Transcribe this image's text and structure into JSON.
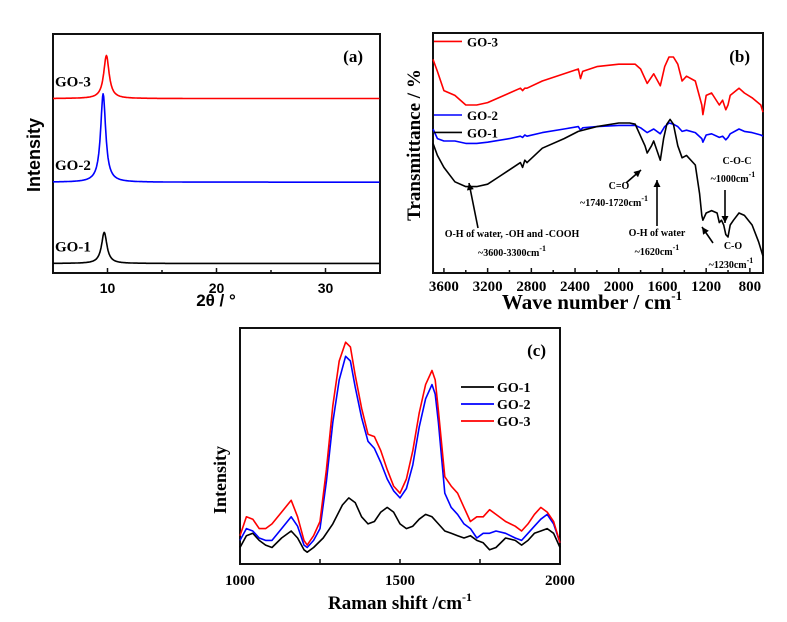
{
  "chart_data": [
    {
      "id": "a",
      "type": "line",
      "panel_label": "(a)",
      "title": "",
      "xlabel": "2θ / °",
      "ylabel": "Intensity",
      "xlim": [
        5,
        35
      ],
      "ylim": [
        0,
        1
      ],
      "x_ticks": [
        10,
        20,
        30
      ],
      "x_tick_labels": [
        "10",
        "20",
        "30"
      ],
      "y_ticks_shown": false,
      "grid": false,
      "legend": "inline-labels-left",
      "series": [
        {
          "name": "GO-1",
          "color": "#000000",
          "baseline": 0.04,
          "peak_position": 9.7,
          "peak_height": 0.13,
          "peak_width": 0.3
        },
        {
          "name": "GO-2",
          "color": "#0000ff",
          "baseline": 0.38,
          "peak_position": 9.6,
          "peak_height": 0.37,
          "peak_width": 0.28
        },
        {
          "name": "GO-3",
          "color": "#ff0000",
          "baseline": 0.73,
          "peak_position": 9.9,
          "peak_height": 0.18,
          "peak_width": 0.3
        }
      ]
    },
    {
      "id": "b",
      "type": "line",
      "panel_label": "(b)",
      "title": "",
      "xlabel": "Wave number / cm",
      "xlabel_superscript": "-1",
      "ylabel": "Transmittance / %",
      "xlim": [
        3700,
        680
      ],
      "x_reversed": true,
      "ylim": [
        0,
        1
      ],
      "x_ticks": [
        3600,
        3200,
        2800,
        2400,
        2000,
        1600,
        1200,
        800
      ],
      "x_tick_labels": [
        "3600",
        "3200",
        "2800",
        "2400",
        "2000",
        "1600",
        "1200",
        "800"
      ],
      "y_ticks_shown": false,
      "grid": false,
      "legend": "inline-labels-left",
      "series": [
        {
          "name": "GO-3",
          "color": "#ff0000",
          "x": [
            3700,
            3660,
            3600,
            3500,
            3400,
            3300,
            3200,
            3000,
            2900,
            2880,
            2860,
            2840,
            2700,
            2500,
            2370,
            2350,
            2330,
            2200,
            2000,
            1850,
            1800,
            1740,
            1680,
            1620,
            1580,
            1540,
            1500,
            1460,
            1420,
            1380,
            1300,
            1240,
            1230,
            1200,
            1150,
            1080,
            1050,
            1020,
            1000,
            980,
            900,
            850,
            780,
            700,
            680
          ],
          "y": [
            0.89,
            0.84,
            0.76,
            0.74,
            0.7,
            0.7,
            0.71,
            0.75,
            0.77,
            0.76,
            0.77,
            0.77,
            0.8,
            0.83,
            0.85,
            0.81,
            0.84,
            0.86,
            0.87,
            0.87,
            0.85,
            0.79,
            0.83,
            0.78,
            0.86,
            0.9,
            0.9,
            0.87,
            0.8,
            0.82,
            0.8,
            0.7,
            0.66,
            0.74,
            0.75,
            0.7,
            0.72,
            0.68,
            0.7,
            0.74,
            0.77,
            0.75,
            0.73,
            0.7,
            0.67
          ]
        },
        {
          "name": "GO-2",
          "color": "#0000ff",
          "x": [
            3700,
            3660,
            3600,
            3500,
            3400,
            3300,
            3200,
            3000,
            2900,
            2880,
            2860,
            2840,
            2700,
            2500,
            2370,
            2350,
            2330,
            2200,
            2000,
            1850,
            1800,
            1740,
            1680,
            1620,
            1580,
            1540,
            1500,
            1460,
            1420,
            1380,
            1300,
            1240,
            1230,
            1200,
            1150,
            1080,
            1050,
            1020,
            1000,
            980,
            900,
            850,
            780,
            700,
            680
          ],
          "y": [
            0.6,
            0.56,
            0.55,
            0.55,
            0.54,
            0.54,
            0.545,
            0.56,
            0.57,
            0.565,
            0.575,
            0.57,
            0.585,
            0.6,
            0.61,
            0.595,
            0.605,
            0.61,
            0.615,
            0.615,
            0.605,
            0.585,
            0.6,
            0.58,
            0.61,
            0.625,
            0.62,
            0.61,
            0.59,
            0.595,
            0.585,
            0.56,
            0.545,
            0.575,
            0.58,
            0.565,
            0.57,
            0.555,
            0.565,
            0.58,
            0.6,
            0.59,
            0.585,
            0.575,
            0.57
          ]
        },
        {
          "name": "GO-1",
          "color": "#000000",
          "x": [
            3700,
            3660,
            3600,
            3500,
            3400,
            3300,
            3200,
            3100,
            3000,
            2900,
            2880,
            2860,
            2840,
            2700,
            2500,
            2370,
            2200,
            2000,
            1900,
            1850,
            1800,
            1760,
            1740,
            1700,
            1680,
            1650,
            1620,
            1590,
            1560,
            1530,
            1500,
            1460,
            1420,
            1380,
            1300,
            1260,
            1240,
            1230,
            1200,
            1150,
            1100,
            1080,
            1060,
            1040,
            1020,
            1000,
            980,
            950,
            900,
            850,
            780,
            720,
            680
          ],
          "y": [
            0.54,
            0.49,
            0.44,
            0.38,
            0.36,
            0.36,
            0.37,
            0.4,
            0.43,
            0.46,
            0.44,
            0.47,
            0.46,
            0.52,
            0.56,
            0.59,
            0.61,
            0.625,
            0.625,
            0.62,
            0.57,
            0.53,
            0.5,
            0.53,
            0.55,
            0.51,
            0.47,
            0.56,
            0.62,
            0.64,
            0.62,
            0.53,
            0.48,
            0.49,
            0.45,
            0.33,
            0.24,
            0.22,
            0.25,
            0.26,
            0.25,
            0.21,
            0.22,
            0.2,
            0.16,
            0.15,
            0.2,
            0.22,
            0.25,
            0.24,
            0.2,
            0.13,
            0.07
          ]
        }
      ],
      "annotations": [
        {
          "text": "O-H of water, -OH and -COOH",
          "line2": "~3600-3300cm",
          "sup": "-1",
          "target_x": 3360
        },
        {
          "text": "C=O",
          "line2": "~1740-1720cm",
          "sup": "-1",
          "target_x": 1740
        },
        {
          "text": "O-H of water",
          "line2": "~1620cm",
          "sup": "-1",
          "target_x": 1620
        },
        {
          "text": "C-O-C",
          "line2": "~1000cm",
          "sup": "-1",
          "target_x": 1000
        },
        {
          "text": "C-O",
          "line2": "~1230cm",
          "sup": "-1",
          "target_x": 1230
        }
      ]
    },
    {
      "id": "c",
      "type": "line",
      "panel_label": "(c)",
      "title": "",
      "xlabel": "Raman shift /cm",
      "xlabel_superscript": "-1",
      "ylabel": "Intensity",
      "xlim": [
        1000,
        2000
      ],
      "ylim": [
        0,
        1
      ],
      "x_ticks": [
        1000,
        1250,
        1500,
        1750,
        2000
      ],
      "x_tick_labels": [
        "1000",
        "",
        "1500",
        "",
        "2000"
      ],
      "y_ticks_shown": false,
      "grid": false,
      "legend": "right",
      "series": [
        {
          "name": "GO-1",
          "color": "#000000",
          "x": [
            1000,
            1020,
            1040,
            1060,
            1080,
            1100,
            1130,
            1160,
            1180,
            1200,
            1210,
            1230,
            1260,
            1290,
            1320,
            1340,
            1360,
            1380,
            1400,
            1420,
            1440,
            1460,
            1480,
            1500,
            1520,
            1540,
            1560,
            1580,
            1600,
            1620,
            1640,
            1660,
            1680,
            1700,
            1720,
            1740,
            1760,
            1780,
            1800,
            1830,
            1860,
            1880,
            1900,
            1920,
            1940,
            1960,
            1980,
            2000
          ],
          "y": [
            0.07,
            0.12,
            0.13,
            0.1,
            0.08,
            0.07,
            0.11,
            0.14,
            0.11,
            0.06,
            0.05,
            0.07,
            0.11,
            0.17,
            0.25,
            0.28,
            0.26,
            0.2,
            0.17,
            0.18,
            0.22,
            0.24,
            0.22,
            0.17,
            0.15,
            0.16,
            0.19,
            0.21,
            0.2,
            0.17,
            0.14,
            0.13,
            0.12,
            0.11,
            0.12,
            0.1,
            0.09,
            0.06,
            0.07,
            0.11,
            0.1,
            0.08,
            0.1,
            0.13,
            0.14,
            0.15,
            0.13,
            0.07
          ]
        },
        {
          "name": "GO-2",
          "color": "#0000ff",
          "x": [
            1000,
            1020,
            1040,
            1060,
            1080,
            1100,
            1130,
            1160,
            1180,
            1200,
            1210,
            1230,
            1250,
            1270,
            1290,
            1310,
            1330,
            1345,
            1360,
            1380,
            1400,
            1420,
            1440,
            1460,
            1480,
            1500,
            1520,
            1540,
            1560,
            1580,
            1600,
            1610,
            1620,
            1640,
            1660,
            1680,
            1700,
            1720,
            1740,
            1760,
            1780,
            1800,
            1830,
            1860,
            1880,
            1900,
            1920,
            1940,
            1960,
            1980,
            2000
          ],
          "y": [
            0.1,
            0.15,
            0.14,
            0.11,
            0.1,
            0.1,
            0.15,
            0.2,
            0.16,
            0.08,
            0.07,
            0.1,
            0.15,
            0.35,
            0.6,
            0.78,
            0.88,
            0.86,
            0.75,
            0.62,
            0.52,
            0.49,
            0.43,
            0.36,
            0.31,
            0.28,
            0.32,
            0.42,
            0.58,
            0.7,
            0.76,
            0.72,
            0.6,
            0.3,
            0.24,
            0.21,
            0.17,
            0.15,
            0.11,
            0.13,
            0.13,
            0.14,
            0.13,
            0.11,
            0.1,
            0.13,
            0.16,
            0.19,
            0.21,
            0.17,
            0.09
          ]
        },
        {
          "name": "GO-3",
          "color": "#ff0000",
          "x": [
            1000,
            1020,
            1040,
            1060,
            1080,
            1100,
            1130,
            1160,
            1180,
            1200,
            1210,
            1230,
            1250,
            1270,
            1290,
            1310,
            1330,
            1345,
            1360,
            1380,
            1400,
            1420,
            1440,
            1460,
            1480,
            1500,
            1520,
            1540,
            1560,
            1580,
            1600,
            1610,
            1620,
            1640,
            1660,
            1680,
            1700,
            1720,
            1740,
            1760,
            1780,
            1800,
            1830,
            1860,
            1880,
            1900,
            1920,
            1940,
            1960,
            1980,
            2000
          ],
          "y": [
            0.12,
            0.2,
            0.19,
            0.15,
            0.15,
            0.17,
            0.22,
            0.27,
            0.2,
            0.1,
            0.08,
            0.12,
            0.18,
            0.4,
            0.67,
            0.86,
            0.94,
            0.92,
            0.8,
            0.66,
            0.55,
            0.54,
            0.48,
            0.4,
            0.33,
            0.3,
            0.36,
            0.48,
            0.64,
            0.76,
            0.82,
            0.78,
            0.65,
            0.37,
            0.33,
            0.3,
            0.24,
            0.18,
            0.2,
            0.2,
            0.23,
            0.21,
            0.18,
            0.16,
            0.14,
            0.17,
            0.21,
            0.24,
            0.22,
            0.18,
            0.09
          ]
        }
      ]
    }
  ]
}
